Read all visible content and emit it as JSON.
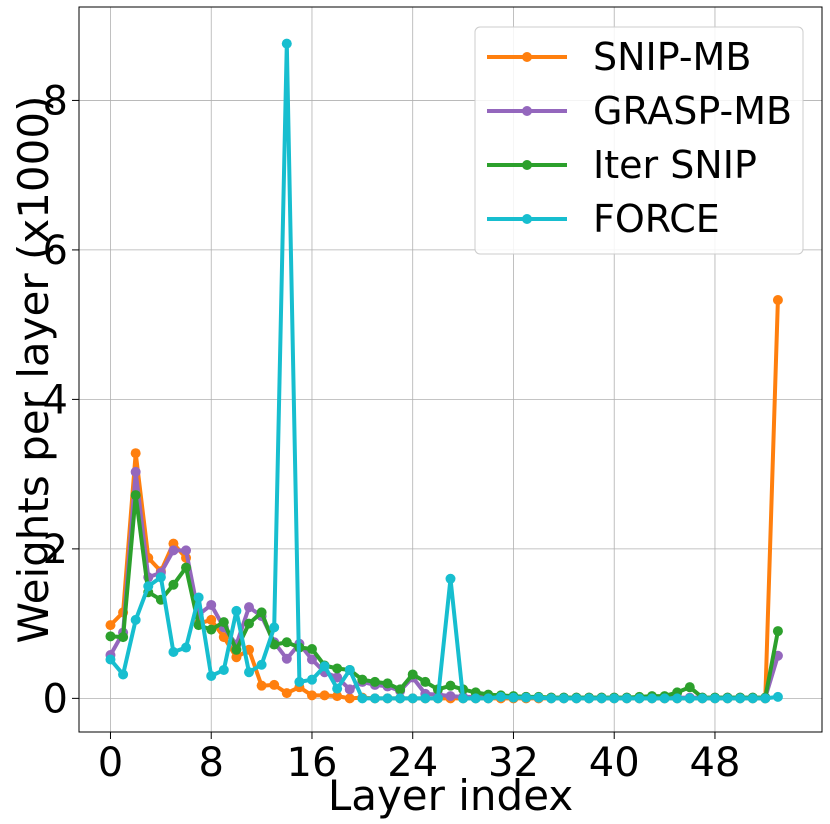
{
  "chart_data": {
    "type": "line",
    "title": "",
    "xlabel": "Layer index",
    "ylabel": "Weights per layer (x1000)",
    "xlim": [
      -2.5,
      56.5
    ],
    "ylim": [
      -0.45,
      9.25
    ],
    "xticks": [
      0,
      8,
      16,
      24,
      32,
      40,
      48
    ],
    "xtick_labels": [
      "0",
      "8",
      "16",
      "24",
      "32",
      "40",
      "48"
    ],
    "yticks": [
      0,
      2,
      4,
      6,
      8
    ],
    "ytick_labels": [
      "0",
      "2",
      "4",
      "6",
      "8"
    ],
    "grid": true,
    "legend_position": "top-right",
    "x": [
      0,
      1,
      2,
      3,
      4,
      5,
      6,
      7,
      8,
      9,
      10,
      11,
      12,
      13,
      14,
      15,
      16,
      17,
      18,
      19,
      20,
      21,
      22,
      23,
      24,
      25,
      26,
      27,
      28,
      29,
      30,
      31,
      32,
      33,
      34,
      35,
      36,
      37,
      38,
      39,
      40,
      41,
      42,
      43,
      44,
      45,
      46,
      47,
      48,
      49,
      50,
      51,
      52,
      53
    ],
    "series": [
      {
        "name": "SNIP-MB",
        "color": "#ff7f0e",
        "values": [
          0.98,
          1.15,
          3.28,
          1.88,
          1.7,
          2.07,
          1.88,
          1.0,
          1.05,
          0.82,
          0.55,
          0.65,
          0.17,
          0.18,
          0.07,
          0.15,
          0.04,
          0.04,
          0.03,
          0.0,
          0.01,
          0.0,
          0.0,
          0.0,
          0.0,
          0.0,
          0.0,
          0.0,
          0.0,
          0.0,
          0.0,
          0.0,
          0.0,
          0.0,
          0.0,
          0.0,
          0.0,
          0.0,
          0.0,
          0.0,
          0.0,
          0.0,
          0.0,
          0.0,
          0.0,
          0.0,
          0.0,
          0.0,
          0.0,
          0.0,
          0.0,
          0.0,
          0.0,
          5.33
        ]
      },
      {
        "name": "GRASP-MB",
        "color": "#9467bd",
        "values": [
          0.58,
          0.88,
          3.03,
          1.62,
          1.68,
          1.98,
          1.98,
          1.12,
          1.25,
          0.95,
          0.72,
          1.22,
          1.1,
          0.75,
          0.53,
          0.73,
          0.52,
          0.35,
          0.28,
          0.12,
          0.22,
          0.18,
          0.16,
          0.1,
          0.28,
          0.06,
          0.05,
          0.03,
          0.02,
          0.02,
          0.02,
          0.02,
          0.02,
          0.02,
          0.01,
          0.01,
          0.01,
          0.01,
          0.01,
          0.01,
          0.01,
          0.01,
          0.01,
          0.01,
          0.01,
          0.01,
          0.01,
          0.01,
          0.01,
          0.01,
          0.01,
          0.01,
          0.01,
          0.57
        ]
      },
      {
        "name": "Iter SNIP",
        "color": "#2ca02c",
        "values": [
          0.83,
          0.82,
          2.72,
          1.42,
          1.32,
          1.52,
          1.75,
          0.98,
          0.92,
          1.02,
          0.65,
          1.0,
          1.15,
          0.72,
          0.75,
          0.68,
          0.66,
          0.44,
          0.4,
          0.38,
          0.25,
          0.22,
          0.2,
          0.12,
          0.32,
          0.22,
          0.12,
          0.17,
          0.12,
          0.08,
          0.05,
          0.04,
          0.03,
          0.02,
          0.02,
          0.01,
          0.01,
          0.01,
          0.01,
          0.01,
          0.01,
          0.01,
          0.02,
          0.03,
          0.03,
          0.08,
          0.15,
          0.01,
          0.01,
          0.01,
          0.01,
          0.01,
          0.01,
          0.9
        ]
      },
      {
        "name": "FORCE",
        "color": "#17becf",
        "values": [
          0.52,
          0.32,
          1.05,
          1.5,
          1.62,
          0.62,
          0.68,
          1.35,
          0.3,
          0.38,
          1.17,
          0.35,
          0.45,
          0.95,
          8.76,
          0.22,
          0.25,
          0.43,
          0.13,
          0.38,
          0.0,
          0.0,
          0.0,
          0.0,
          0.0,
          0.0,
          0.0,
          1.6,
          0.0,
          0.0,
          0.0,
          0.02,
          0.01,
          0.01,
          0.01,
          0.0,
          0.0,
          0.0,
          0.0,
          0.0,
          0.0,
          0.0,
          0.0,
          0.0,
          0.0,
          0.0,
          0.0,
          0.0,
          0.0,
          0.0,
          0.0,
          0.0,
          0.0,
          0.02
        ]
      }
    ]
  }
}
